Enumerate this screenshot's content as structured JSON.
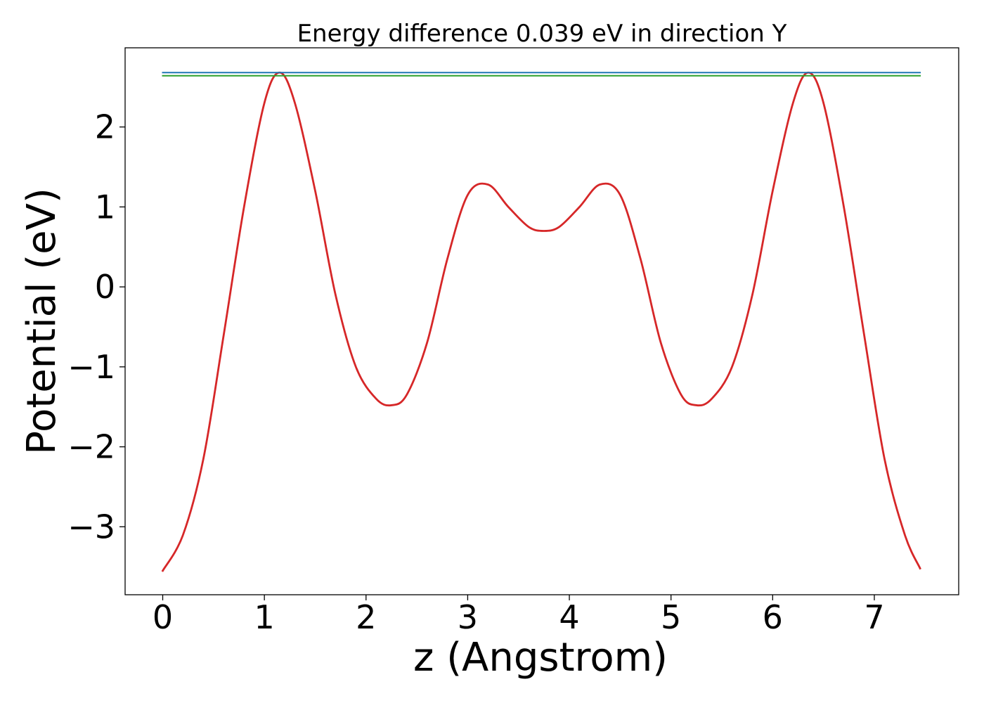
{
  "chart_data": {
    "type": "line",
    "title": "Energy difference 0.039 eV in direction Y",
    "xlabel": "z (Angstrom)",
    "ylabel": "Potential (eV)",
    "xlim": [
      -0.37,
      7.83
    ],
    "ylim": [
      -3.85,
      2.99
    ],
    "xticks": [
      0,
      1,
      2,
      3,
      4,
      5,
      6,
      7
    ],
    "yticks": [
      -3,
      -2,
      -1,
      0,
      1,
      2
    ],
    "xtick_labels": [
      "0",
      "1",
      "2",
      "3",
      "4",
      "5",
      "6",
      "7"
    ],
    "ytick_labels": [
      "−3",
      "−2",
      "−1",
      "0",
      "1",
      "2"
    ],
    "grid": false,
    "legend": "none",
    "series": [
      {
        "color": "#d62728",
        "x": [
          0.0,
          0.2,
          0.4,
          0.6,
          0.8,
          1.0,
          1.15,
          1.3,
          1.5,
          1.7,
          1.9,
          2.1,
          2.25,
          2.4,
          2.6,
          2.8,
          3.0,
          3.2,
          3.4,
          3.6,
          3.75,
          3.9,
          4.1,
          4.3,
          4.5,
          4.7,
          4.9,
          5.1,
          5.25,
          5.4,
          5.6,
          5.8,
          6.0,
          6.2,
          6.35,
          6.5,
          6.7,
          6.9,
          7.1,
          7.3,
          7.45
        ],
        "y": [
          -3.55,
          -3.1,
          -2.15,
          -0.6,
          1.0,
          2.3,
          2.68,
          2.3,
          1.2,
          -0.1,
          -1.0,
          -1.4,
          -1.48,
          -1.35,
          -0.7,
          0.35,
          1.15,
          1.28,
          1.0,
          0.75,
          0.7,
          0.75,
          1.0,
          1.28,
          1.15,
          0.35,
          -0.7,
          -1.35,
          -1.48,
          -1.4,
          -1.0,
          -0.1,
          1.2,
          2.3,
          2.68,
          2.3,
          1.0,
          -0.6,
          -2.15,
          -3.1,
          -3.52
        ]
      },
      {
        "color": "#1f77b4",
        "x": [
          0.0,
          7.45
        ],
        "y": [
          2.68,
          2.68
        ]
      },
      {
        "color": "#2ca02c",
        "x": [
          0.0,
          7.45
        ],
        "y": [
          2.641,
          2.641
        ]
      }
    ]
  }
}
